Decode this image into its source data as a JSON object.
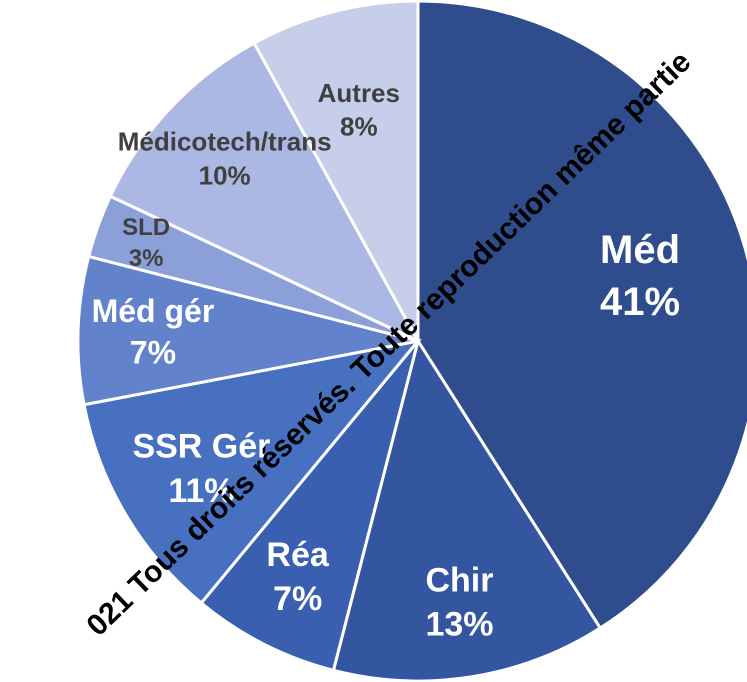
{
  "chart_data": {
    "type": "pie",
    "categories": [
      "Méd",
      "Chir",
      "Réa",
      "SSR Gér",
      "Méd gér",
      "SLD",
      "Médicotech/trans",
      "Autres"
    ],
    "values": [
      41,
      13,
      7,
      11,
      7,
      3,
      10,
      8
    ],
    "value_labels": [
      "41%",
      "13%",
      "7%",
      "11%",
      "7%",
      "3%",
      "10%",
      "8%"
    ],
    "colors": [
      "#2f4d8c",
      "#3456a1",
      "#3a5fb0",
      "#4770c0",
      "#6282cc",
      "#8ba0d9",
      "#aab8e3",
      "#c6cee9"
    ],
    "label_colors": [
      "#ffffff",
      "#ffffff",
      "#ffffff",
      "#ffffff",
      "#ffffff",
      "#404040",
      "#404040",
      "#404040"
    ],
    "annotations": [
      "021 Tous droits réservés. Toute reproduction même partie"
    ]
  }
}
